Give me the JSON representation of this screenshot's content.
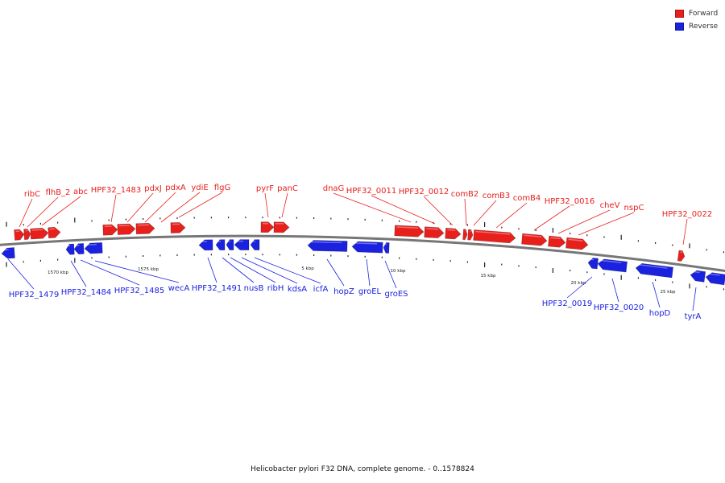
{
  "colors": {
    "forward": "#e8201c",
    "reverse": "#1a22e0",
    "backbone": "#777777"
  },
  "legend": [
    {
      "label": "Forward",
      "color": "#e8201c"
    },
    {
      "label": "Reverse",
      "color": "#1a22e0"
    }
  ],
  "caption": "Helicobacter pylori F32 DNA, complete genome. - 0..1578824",
  "tick_labels": [
    "1570 kbp",
    "1575 kbp",
    "5 kbp",
    "10 kbp",
    "15 kbp",
    "20 kbp",
    "25 kbp"
  ],
  "forward_labels": [
    "ribC",
    "flhB_2",
    "abc",
    "HPF32_1483",
    "pdxJ",
    "pdxA",
    "ydiE",
    "flgG",
    "pyrF",
    "panC",
    "dnaG",
    "HPF32_0011",
    "HPF32_0012",
    "comB2",
    "comB3",
    "comB4",
    "HPF32_0016",
    "cheV",
    "nspC",
    "HPF32_0022"
  ],
  "reverse_labels": [
    "HPF32_1479",
    "HPF32_1484",
    "HPF32_1485",
    "wecA",
    "HPF32_1491",
    "nusB",
    "ribH",
    "kdsA",
    "icfA",
    "hopZ",
    "groEL",
    "groES",
    "HPF32_0019",
    "HPF32_0020",
    "hopD",
    "tyrA"
  ]
}
